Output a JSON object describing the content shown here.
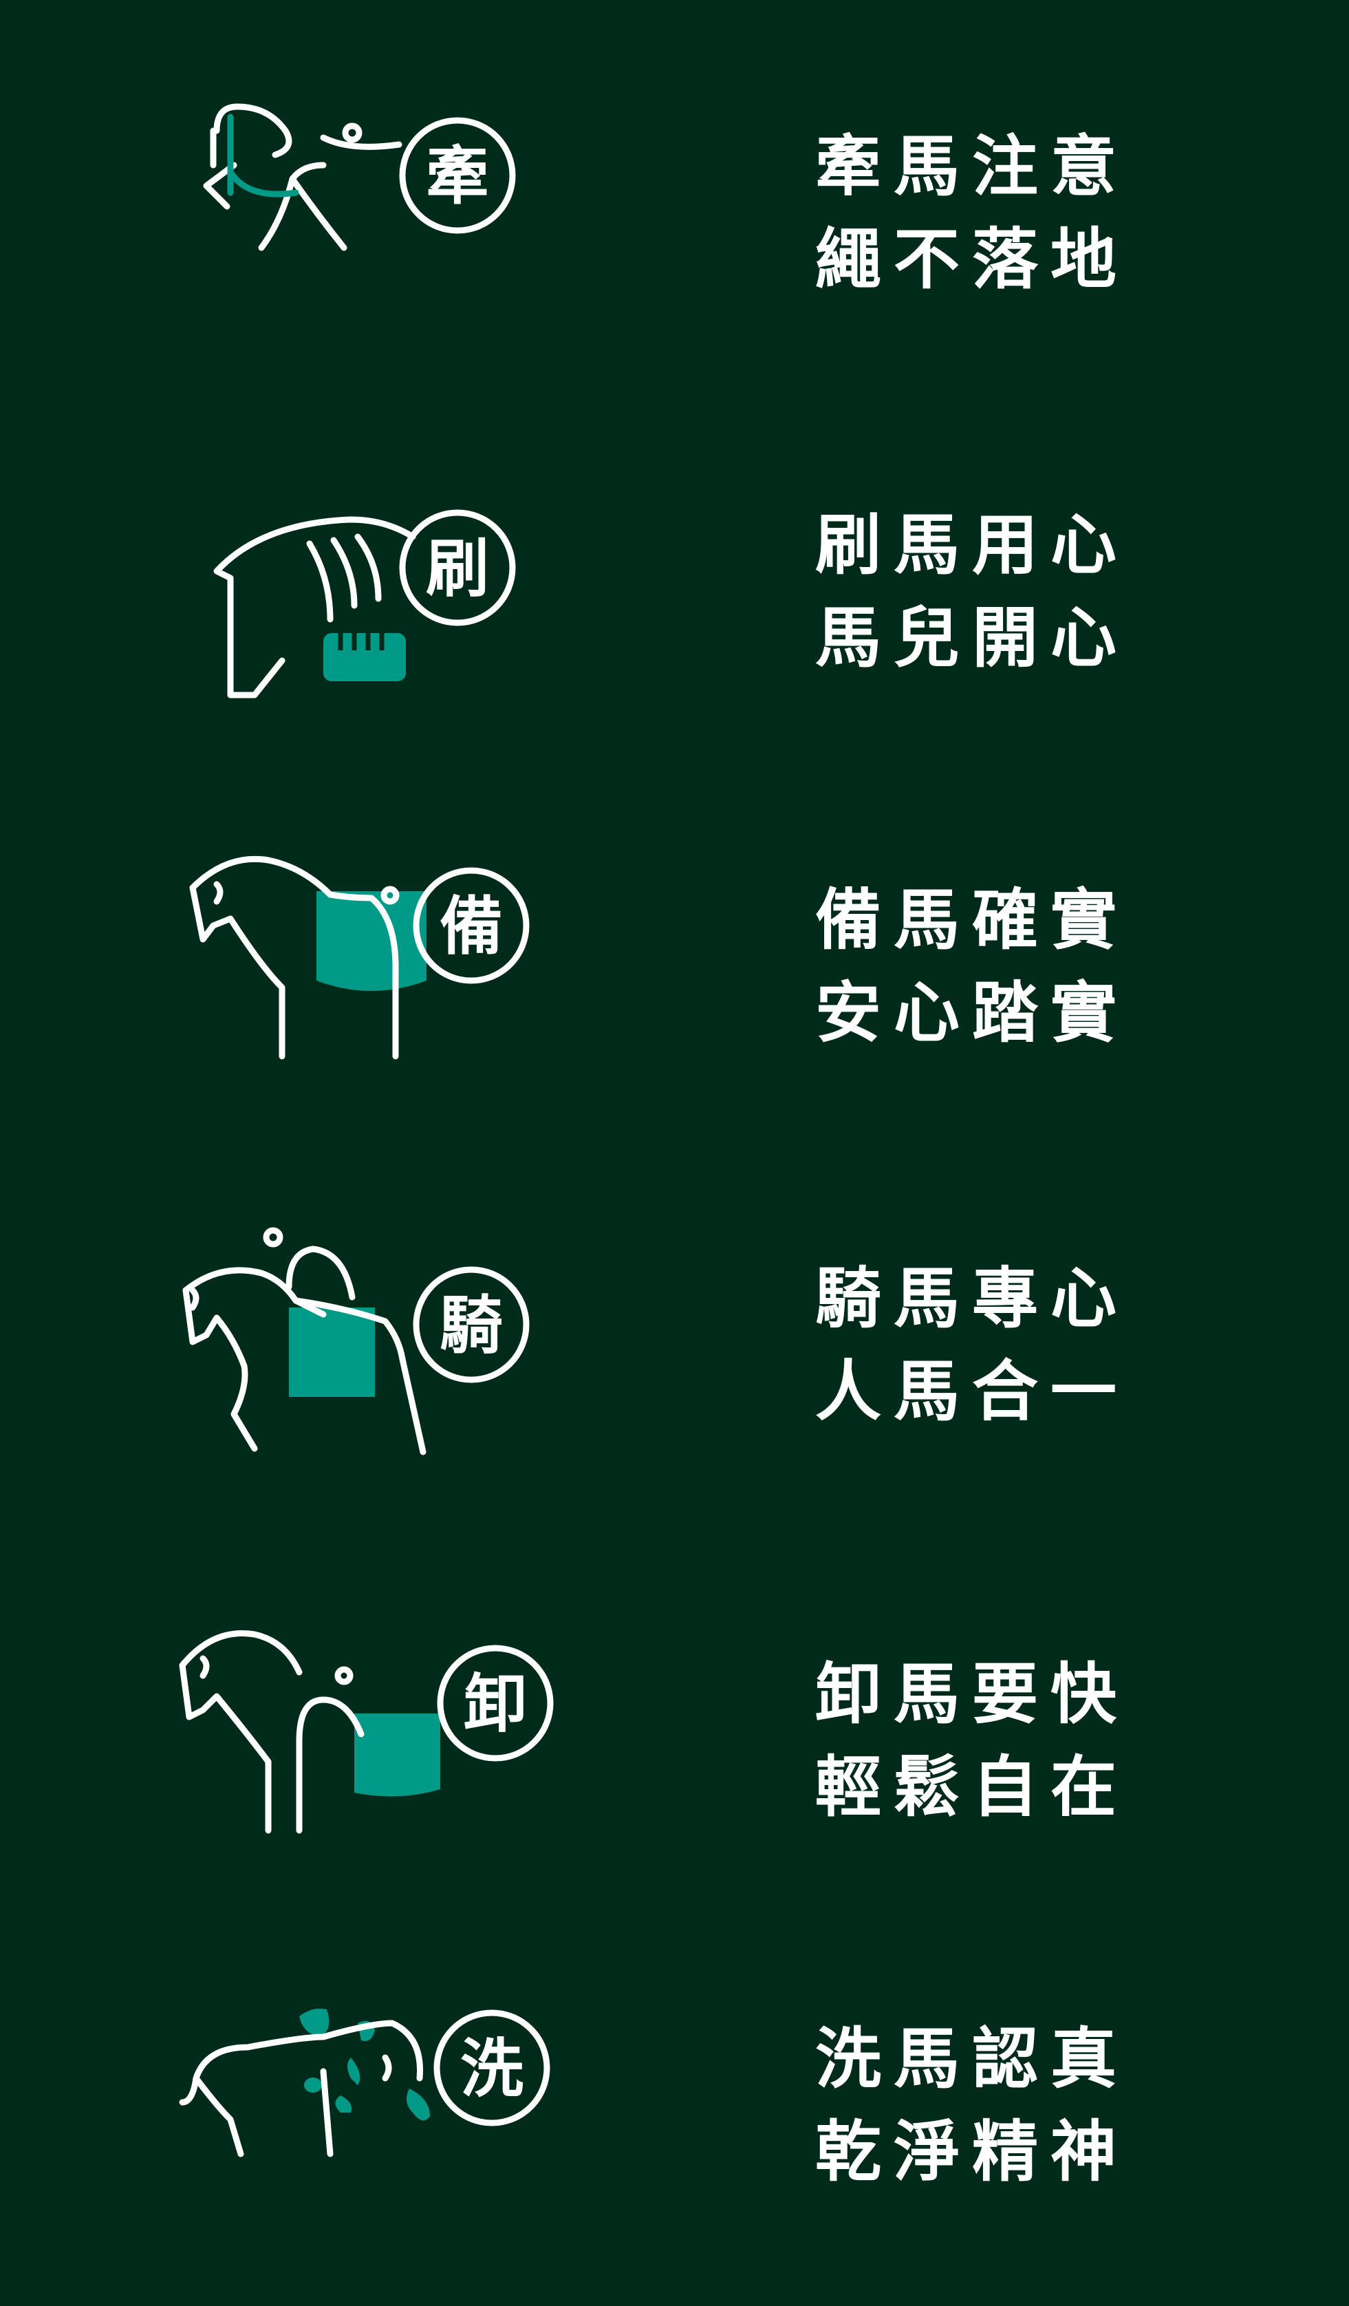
{
  "colors": {
    "background": "#002a1a",
    "line": "#ffffff",
    "accent": "#009a86"
  },
  "items": [
    {
      "icon": "leading-horse-icon",
      "badge": "牽",
      "line1": "牽馬注意",
      "line2": "繩不落地"
    },
    {
      "icon": "grooming-horse-icon",
      "badge": "刷",
      "line1": "刷馬用心",
      "line2": "馬兒開心"
    },
    {
      "icon": "saddling-horse-icon",
      "badge": "備",
      "line1": "備馬確實",
      "line2": "安心踏實"
    },
    {
      "icon": "riding-horse-icon",
      "badge": "騎",
      "line1": "騎馬專心",
      "line2": "人馬合一"
    },
    {
      "icon": "unsaddling-horse-icon",
      "badge": "卸",
      "line1": "卸馬要快",
      "line2": "輕鬆自在"
    },
    {
      "icon": "washing-horse-icon",
      "badge": "洗",
      "line1": "洗馬認真",
      "line2": "乾淨精神"
    }
  ]
}
